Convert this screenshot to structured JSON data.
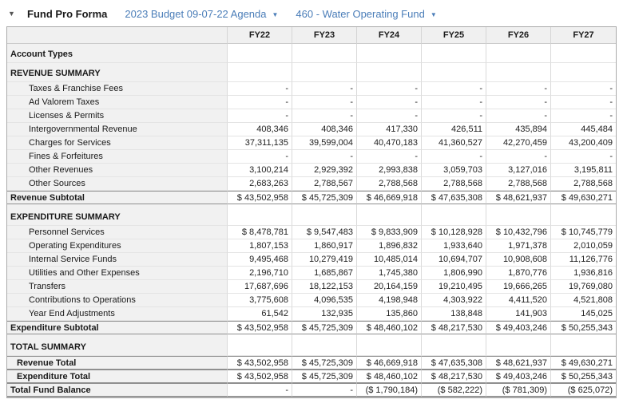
{
  "colors": {
    "link_blue": "#4a7db8",
    "header_gray": "#f1f1f1"
  },
  "header": {
    "collapse_caret": "▼",
    "title": "Fund Pro Forma",
    "budget_selector": "2023 Budget 09-07-22 Agenda",
    "fund_selector": "460 - Water Operating Fund",
    "dropdown_caret": "▼"
  },
  "table": {
    "columns": [
      "FY22",
      "FY23",
      "FY24",
      "FY25",
      "FY26",
      "FY27"
    ],
    "rows": [
      {
        "label": "Account Types",
        "style": "section",
        "values": [
          "",
          "",
          "",
          "",
          "",
          ""
        ]
      },
      {
        "label": "REVENUE SUMMARY",
        "style": "section",
        "values": [
          "",
          "",
          "",
          "",
          "",
          ""
        ]
      },
      {
        "label": "Taxes & Franchise Fees",
        "style": "item",
        "values": [
          "-",
          "-",
          "-",
          "-",
          "-",
          "-"
        ]
      },
      {
        "label": "Ad Valorem Taxes",
        "style": "item",
        "values": [
          "-",
          "-",
          "-",
          "-",
          "-",
          "-"
        ]
      },
      {
        "label": "Licenses & Permits",
        "style": "item",
        "values": [
          "-",
          "-",
          "-",
          "-",
          "-",
          "-"
        ]
      },
      {
        "label": "Intergovernmental Revenue",
        "style": "item",
        "values": [
          "408,346",
          "408,346",
          "417,330",
          "426,511",
          "435,894",
          "445,484"
        ]
      },
      {
        "label": "Charges for Services",
        "style": "item",
        "values": [
          "37,311,135",
          "39,599,004",
          "40,470,183",
          "41,360,527",
          "42,270,459",
          "43,200,409"
        ]
      },
      {
        "label": "Fines & Forfeitures",
        "style": "item",
        "values": [
          "-",
          "-",
          "-",
          "-",
          "-",
          "-"
        ]
      },
      {
        "label": "Other Revenues",
        "style": "item",
        "values": [
          "3,100,214",
          "2,929,392",
          "2,993,838",
          "3,059,703",
          "3,127,016",
          "3,195,811"
        ]
      },
      {
        "label": "Other Sources",
        "style": "item",
        "values": [
          "2,683,263",
          "2,788,567",
          "2,788,568",
          "2,788,568",
          "2,788,568",
          "2,788,568"
        ]
      },
      {
        "label": "Revenue Subtotal",
        "style": "subtotal",
        "values": [
          "$ 43,502,958",
          "$ 45,725,309",
          "$ 46,669,918",
          "$ 47,635,308",
          "$ 48,621,937",
          "$ 49,630,271"
        ]
      },
      {
        "label": "EXPENDITURE SUMMARY",
        "style": "section-tall",
        "values": [
          "",
          "",
          "",
          "",
          "",
          ""
        ]
      },
      {
        "label": "Personnel Services",
        "style": "item",
        "values": [
          "$ 8,478,781",
          "$ 9,547,483",
          "$ 9,833,909",
          "$ 10,128,928",
          "$ 10,432,796",
          "$ 10,745,779"
        ]
      },
      {
        "label": "Operating Expenditures",
        "style": "item",
        "values": [
          "1,807,153",
          "1,860,917",
          "1,896,832",
          "1,933,640",
          "1,971,378",
          "2,010,059"
        ]
      },
      {
        "label": "Internal Service Funds",
        "style": "item",
        "values": [
          "9,495,468",
          "10,279,419",
          "10,485,014",
          "10,694,707",
          "10,908,608",
          "11,126,776"
        ]
      },
      {
        "label": "Utilities and Other Expenses",
        "style": "item",
        "values": [
          "2,196,710",
          "1,685,867",
          "1,745,380",
          "1,806,990",
          "1,870,776",
          "1,936,816"
        ]
      },
      {
        "label": "Transfers",
        "style": "item",
        "values": [
          "17,687,696",
          "18,122,153",
          "20,164,159",
          "19,210,495",
          "19,666,265",
          "19,769,080"
        ]
      },
      {
        "label": "Contributions to Operations",
        "style": "item",
        "values": [
          "3,775,608",
          "4,096,535",
          "4,198,948",
          "4,303,922",
          "4,411,520",
          "4,521,808"
        ]
      },
      {
        "label": "Year End Adjustments",
        "style": "item",
        "values": [
          "61,542",
          "132,935",
          "135,860",
          "138,848",
          "141,903",
          "145,025"
        ]
      },
      {
        "label": "Expenditure Subtotal",
        "style": "subtotal",
        "values": [
          "$ 43,502,958",
          "$ 45,725,309",
          "$ 48,460,102",
          "$ 48,217,530",
          "$ 49,403,246",
          "$ 50,255,343"
        ]
      },
      {
        "label": "TOTAL SUMMARY",
        "style": "section-tall",
        "values": [
          "",
          "",
          "",
          "",
          "",
          ""
        ]
      },
      {
        "label": "Revenue Total",
        "style": "total-item",
        "values": [
          "$ 43,502,958",
          "$ 45,725,309",
          "$ 46,669,918",
          "$ 47,635,308",
          "$ 48,621,937",
          "$ 49,630,271"
        ]
      },
      {
        "label": "Expenditure Total",
        "style": "total-item",
        "values": [
          "$ 43,502,958",
          "$ 45,725,309",
          "$ 48,460,102",
          "$ 48,217,530",
          "$ 49,403,246",
          "$ 50,255,343"
        ]
      },
      {
        "label": "Total Fund Balance",
        "style": "balance",
        "values": [
          "-",
          "-",
          "($ 1,790,184)",
          "($ 582,222)",
          "($ 781,309)",
          "($ 625,072)"
        ]
      }
    ]
  }
}
